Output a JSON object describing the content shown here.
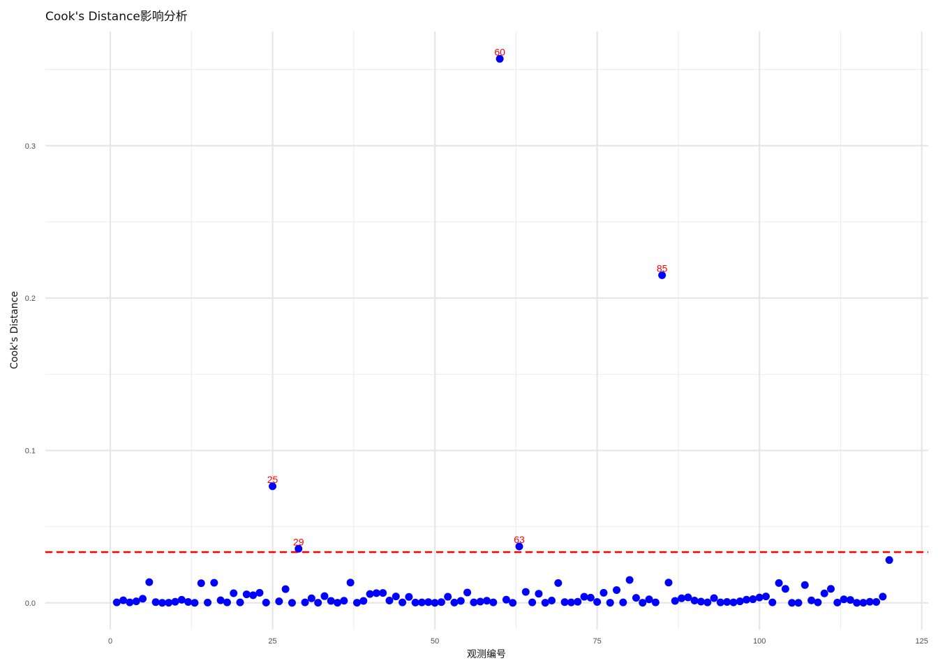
{
  "chart_data": {
    "type": "scatter",
    "title": "Cook's Distance影响分析",
    "xlabel": "观测编号",
    "ylabel": "Cook's Distance",
    "xlim": [
      -10,
      126
    ],
    "ylim": [
      -0.0175,
      0.375
    ],
    "x_ticks": [
      0,
      25,
      50,
      75,
      100,
      125
    ],
    "x_tick_labels": [
      "0",
      "25",
      "50",
      "75",
      "100",
      "125"
    ],
    "y_ticks": [
      0.0,
      0.1,
      0.2,
      0.3
    ],
    "y_tick_labels": [
      "0.0",
      "0.1",
      "0.2",
      "0.3"
    ],
    "y_minor_ticks": [
      0.05,
      0.15,
      0.25,
      0.35
    ],
    "x_minor_ticks": [
      12.5,
      37.5,
      62.5,
      87.5,
      112.5
    ],
    "grid": true,
    "point_color": "#0000ff",
    "threshold": {
      "value": 0.0333,
      "color": "#ff0000",
      "style": "dashed"
    },
    "label_color": "#ff0000",
    "labeled_points": [
      {
        "x": 25,
        "y": 0.0765,
        "label": "25"
      },
      {
        "x": 29,
        "y": 0.0355,
        "label": "29"
      },
      {
        "x": 60,
        "y": 0.357,
        "label": "60"
      },
      {
        "x": 63,
        "y": 0.037,
        "label": "63"
      },
      {
        "x": 85,
        "y": 0.215,
        "label": "85"
      }
    ],
    "series": [
      {
        "x": [
          1,
          2,
          3,
          4,
          5,
          6,
          7,
          8,
          9,
          10,
          11,
          12,
          13,
          14,
          15,
          16,
          17,
          18,
          19,
          20,
          21,
          22,
          23,
          24,
          25,
          26,
          27,
          28,
          29,
          30,
          31,
          32,
          33,
          34,
          35,
          36,
          37,
          38,
          39,
          40,
          41,
          42,
          43,
          44,
          45,
          46,
          47,
          48,
          49,
          50,
          51,
          52,
          53,
          54,
          55,
          56,
          57,
          58,
          59,
          60,
          61,
          62,
          63,
          64,
          65,
          66,
          67,
          68,
          69,
          70,
          71,
          72,
          73,
          74,
          75,
          76,
          77,
          78,
          79,
          80,
          81,
          82,
          83,
          84,
          85,
          86,
          87,
          88,
          89,
          90,
          91,
          92,
          93,
          94,
          95,
          96,
          97,
          98,
          99,
          100,
          101,
          102,
          103,
          104,
          105,
          106,
          107,
          108,
          109,
          110,
          111,
          112,
          113,
          114,
          115,
          116,
          117,
          118,
          119,
          120
        ],
        "y": [
          0.0003,
          0.0017,
          0.0003,
          0.001,
          0.0027,
          0.0136,
          0.0005,
          0.0,
          0.0001,
          0.0007,
          0.002,
          0.0006,
          0.0,
          0.0129,
          0.0002,
          0.0132,
          0.0017,
          0.0003,
          0.0063,
          0.0003,
          0.0056,
          0.005,
          0.0066,
          0.0002,
          0.0765,
          0.001,
          0.009,
          0.0,
          0.0355,
          0.0003,
          0.003,
          0.0001,
          0.0044,
          0.0013,
          0.0001,
          0.0014,
          0.0133,
          0.0001,
          0.0013,
          0.0058,
          0.0064,
          0.0065,
          0.0015,
          0.0042,
          0.0003,
          0.0039,
          0.0002,
          0.0003,
          0.0005,
          0.0,
          0.0005,
          0.004,
          0.0002,
          0.0013,
          0.0068,
          0.0003,
          0.0008,
          0.0014,
          0.0003,
          0.357,
          0.0021,
          0.0,
          0.037,
          0.0072,
          0.0003,
          0.006,
          0.0001,
          0.0015,
          0.013,
          0.0005,
          0.0003,
          0.0007,
          0.004,
          0.0034,
          0.0006,
          0.0066,
          0.0001,
          0.0084,
          0.0003,
          0.015,
          0.0033,
          0.0001,
          0.0023,
          0.0003,
          0.215,
          0.0133,
          0.0013,
          0.003,
          0.0036,
          0.0015,
          0.0008,
          0.0003,
          0.0031,
          0.0003,
          0.0006,
          0.0003,
          0.001,
          0.0021,
          0.0024,
          0.0035,
          0.0042,
          0.0003,
          0.013,
          0.0092,
          0.0,
          0.0,
          0.0117,
          0.0016,
          0.0003,
          0.0062,
          0.0092,
          0.0002,
          0.0023,
          0.0019,
          0.0,
          0.0001,
          0.0007,
          0.0006,
          0.0041,
          0.0281
        ]
      }
    ]
  }
}
